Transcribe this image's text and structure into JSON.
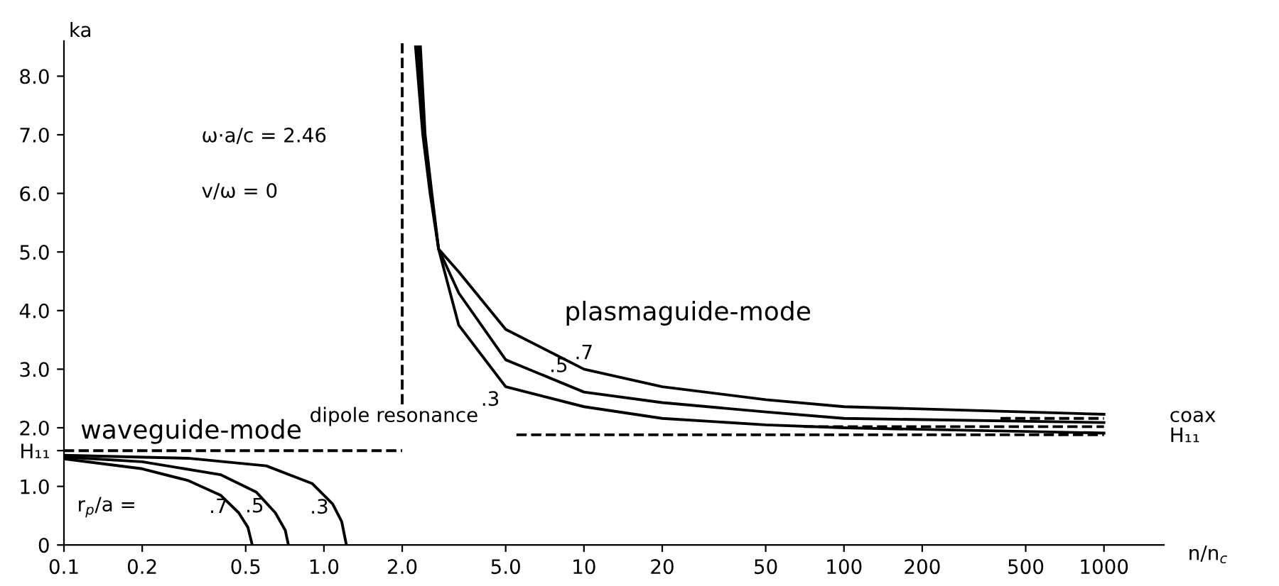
{
  "chart_data": {
    "type": "line",
    "xlabel": "n/n$_{c}$",
    "ylabel": "ka",
    "log": "x",
    "grid": false,
    "marker": "none",
    "xlim": [
      0.1,
      1700
    ],
    "ylim": [
      0,
      8.6
    ],
    "xticks": [
      0.1,
      0.2,
      0.5,
      {
        "value": 1,
        "label": "1.0"
      },
      {
        "value": 2,
        "label": "2.0"
      },
      {
        "value": 5,
        "label": "5.0"
      },
      10,
      20,
      50,
      100,
      200,
      500,
      1000
    ],
    "yticks": [
      0,
      {
        "value": 1,
        "label": "1.0"
      },
      {
        "value": 1.61,
        "label": "H₁₁"
      },
      {
        "value": 2,
        "label": "2.0"
      },
      {
        "value": 3,
        "label": "3.0"
      },
      {
        "value": 4,
        "label": "4.0"
      },
      {
        "value": 5,
        "label": "5.0"
      },
      {
        "value": 6,
        "label": "6.0"
      },
      {
        "value": 7,
        "label": "7.0"
      },
      {
        "value": 8,
        "label": "8.0"
      }
    ],
    "series": [
      {
        "color": "#000000",
        "line_style": "solid",
        "x": [
          0.1,
          0.2,
          0.3,
          0.4,
          0.47,
          0.51,
          0.53
        ],
        "values": [
          1.47,
          1.3,
          1.1,
          0.85,
          0.55,
          0.3,
          0
        ]
      },
      {
        "color": "#000000",
        "line_style": "solid",
        "x": [
          0.1,
          0.2,
          0.4,
          0.55,
          0.65,
          0.71,
          0.73
        ],
        "values": [
          1.5,
          1.42,
          1.2,
          0.9,
          0.55,
          0.25,
          0
        ]
      },
      {
        "color": "#000000",
        "line_style": "solid",
        "x": [
          0.1,
          0.3,
          0.6,
          0.9,
          1.08,
          1.17,
          1.22
        ],
        "values": [
          1.53,
          1.48,
          1.35,
          1.05,
          0.7,
          0.4,
          0
        ]
      },
      {
        "color": "#000000",
        "line_style": "solid",
        "x": [
          2.35,
          2.45,
          2.6,
          2.76,
          3.3,
          5,
          10,
          20,
          50,
          100,
          1000
        ],
        "values": [
          8.5,
          7.0,
          6.0,
          5.05,
          4.66,
          3.68,
          3.0,
          2.7,
          2.48,
          2.36,
          2.23
        ]
      },
      {
        "color": "#000000",
        "line_style": "solid",
        "x": [
          2.3,
          2.42,
          2.58,
          2.76,
          3.3,
          5,
          10,
          20,
          50,
          100,
          1000
        ],
        "values": [
          8.5,
          7.0,
          6.0,
          5.05,
          4.3,
          3.16,
          2.61,
          2.43,
          2.27,
          2.16,
          2.09
        ]
      },
      {
        "color": "#000000",
        "line_style": "solid",
        "x": [
          2.25,
          2.4,
          2.56,
          2.76,
          3.3,
          5,
          10,
          20,
          50,
          100,
          1000
        ],
        "values": [
          8.5,
          7.0,
          6.0,
          5.05,
          3.75,
          2.7,
          2.36,
          2.16,
          2.05,
          2.0,
          1.91
        ]
      },
      {
        "color": "#000000",
        "line_style": "dashed",
        "x": [
          0.1,
          2.0
        ],
        "values": [
          1.61,
          1.61
        ]
      },
      {
        "color": "#000000",
        "line_style": "dashed",
        "x": [
          2.0,
          2.0
        ],
        "values": [
          2.4,
          8.6
        ]
      },
      {
        "color": "#000000",
        "line_style": "dashed",
        "x": [
          5.5,
          1000
        ],
        "values": [
          1.88,
          1.88
        ]
      },
      {
        "color": "#000000",
        "line_style": "dashed",
        "x": [
          70,
          1000
        ],
        "values": [
          2.02,
          2.02
        ]
      },
      {
        "color": "#000000",
        "line_style": "dashed",
        "x": [
          400,
          1000
        ],
        "values": [
          2.16,
          2.16
        ]
      }
    ],
    "annotations": [
      "ω·a/c = 2.46",
      "v/ω = 0",
      "waveguide-mode",
      "plasmaguide-mode",
      "r$_{p}$/a =",
      {
        "text": ".7",
        "x": 0.45,
        "y": 0.64
      },
      {
        "text": ".5",
        "x": 0.62,
        "y": 0.65
      },
      {
        "text": ".3",
        "x": 1.1,
        "y": 0.63
      },
      {
        "text": ".7",
        "x": 10,
        "y": 3.0
      },
      {
        "text": ".5",
        "x": 8,
        "y": 2.78
      },
      {
        "text": ".3",
        "x": 5,
        "y": 2.7
      },
      "dipole resonance",
      "coax",
      "H₁₁"
    ]
  }
}
